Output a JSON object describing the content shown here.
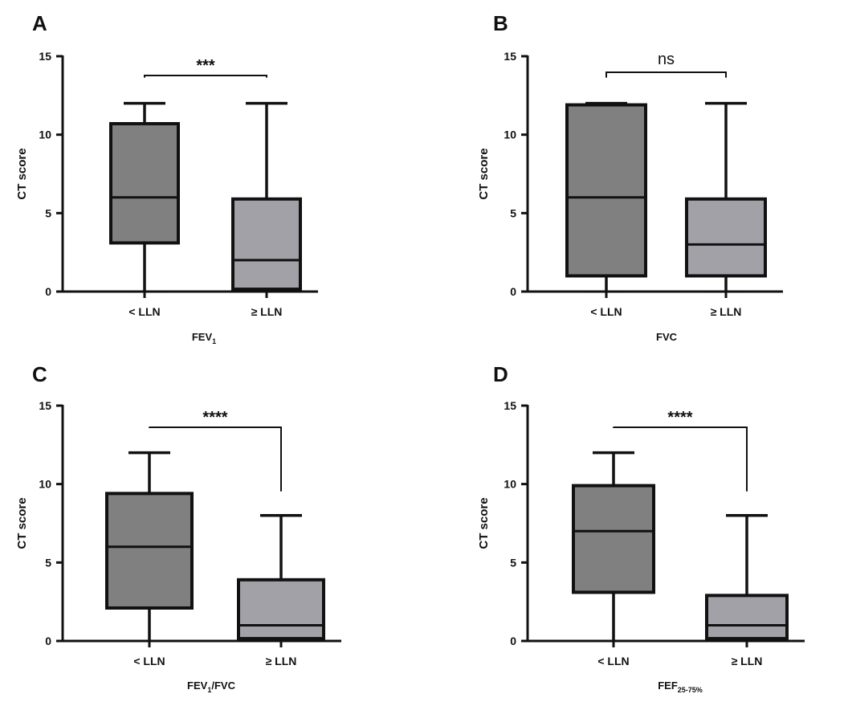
{
  "chart_data": [
    {
      "type": "box",
      "panel": "A",
      "ylabel": "CT score",
      "xlabel_main": "FEV",
      "xlabel_sub": "1",
      "xlabel_tail": "",
      "ylim": [
        0,
        15
      ],
      "yticks": [
        "0",
        "5",
        "10",
        "15"
      ],
      "significance": "***",
      "boxes": [
        {
          "category": "< LLN",
          "min": 0,
          "q1": 3.1,
          "median": 6,
          "q3": 10.7,
          "max": 12,
          "color": "#808080"
        },
        {
          "category": "≥ LLN",
          "min": 0,
          "q1": 0.15,
          "median": 2,
          "q3": 5.9,
          "max": 12,
          "color": "#a2a1a7"
        }
      ]
    },
    {
      "type": "box",
      "panel": "B",
      "ylabel": "CT score",
      "xlabel_main": "FVC",
      "xlabel_sub": "",
      "xlabel_tail": "",
      "ylim": [
        0,
        15
      ],
      "yticks": [
        "0",
        "5",
        "10",
        "15"
      ],
      "significance": "ns",
      "boxes": [
        {
          "category": "< LLN",
          "min": 0,
          "q1": 1,
          "median": 6,
          "q3": 11.9,
          "max": 12,
          "color": "#808080"
        },
        {
          "category": "≥ LLN",
          "min": 0,
          "q1": 1,
          "median": 3,
          "q3": 5.9,
          "max": 12,
          "color": "#a2a1a7"
        }
      ]
    },
    {
      "type": "box",
      "panel": "C",
      "ylabel": "CT score",
      "xlabel_main": "FEV",
      "xlabel_sub": "1",
      "xlabel_tail": "/FVC",
      "ylim": [
        0,
        15
      ],
      "yticks": [
        "0",
        "5",
        "10",
        "15"
      ],
      "significance": "****",
      "boxes": [
        {
          "category": "< LLN",
          "min": 0,
          "q1": 2.1,
          "median": 6,
          "q3": 9.4,
          "max": 12,
          "color": "#808080"
        },
        {
          "category": "≥ LLN",
          "min": 0,
          "q1": 0.15,
          "median": 1,
          "q3": 3.9,
          "max": 8,
          "color": "#a2a1a7"
        }
      ]
    },
    {
      "type": "box",
      "panel": "D",
      "ylabel": "CT score",
      "xlabel_main": "FEF",
      "xlabel_sub": "25-75%",
      "xlabel_tail": "",
      "ylim": [
        0,
        15
      ],
      "yticks": [
        "0",
        "5",
        "10",
        "15"
      ],
      "significance": "****",
      "boxes": [
        {
          "category": "< LLN",
          "min": 0,
          "q1": 3.1,
          "median": 7,
          "q3": 9.9,
          "max": 12,
          "color": "#808080"
        },
        {
          "category": "≥ LLN",
          "min": 0,
          "q1": 0.15,
          "median": 1,
          "q3": 2.9,
          "max": 8,
          "color": "#a2a1a7"
        }
      ]
    }
  ]
}
